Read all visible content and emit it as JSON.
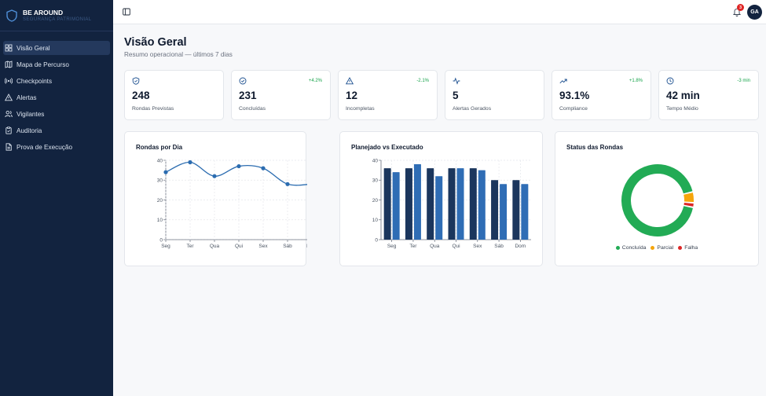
{
  "brand": {
    "name": "BE AROUND",
    "subtitle": "SEGURANÇA PATRIMONIAL"
  },
  "sidebar": {
    "items": [
      {
        "label": "Visão Geral",
        "icon": "dashboard-icon",
        "active": true
      },
      {
        "label": "Mapa de Percurso",
        "icon": "map-icon",
        "active": false
      },
      {
        "label": "Checkpoints",
        "icon": "radio-signal-icon",
        "active": false
      },
      {
        "label": "Alertas",
        "icon": "warning-triangle-icon",
        "active": false
      },
      {
        "label": "Vigilantes",
        "icon": "users-icon",
        "active": false
      },
      {
        "label": "Auditoria",
        "icon": "clipboard-icon",
        "active": false
      },
      {
        "label": "Prova de Execução",
        "icon": "file-icon",
        "active": false
      }
    ]
  },
  "topbar": {
    "notifications": "3",
    "avatar_initials": "GA"
  },
  "page": {
    "title": "Visão Geral",
    "subtitle": "Resumo operacional — últimos 7 dias"
  },
  "stats": [
    {
      "value": "248",
      "label": "Rondas Previstas",
      "delta": "",
      "icon": "shield-icon"
    },
    {
      "value": "231",
      "label": "Concluídas",
      "delta": "+4.2%",
      "icon": "check-circle-icon"
    },
    {
      "value": "12",
      "label": "Incompletas",
      "delta": "-2.1%",
      "icon": "alert-triangle-icon"
    },
    {
      "value": "5",
      "label": "Alertas Gerados",
      "delta": "",
      "icon": "activity-icon"
    },
    {
      "value": "93.1%",
      "label": "Compliance",
      "delta": "+1.8%",
      "icon": "trending-up-icon"
    },
    {
      "value": "42 min",
      "label": "Tempo Médio",
      "delta": "-3 min",
      "icon": "clock-icon"
    }
  ],
  "charts": {
    "line_title": "Rondas por Dia",
    "bar_title": "Planejado vs Executado",
    "donut_title": "Status das Rondas"
  },
  "chart_data": [
    {
      "type": "line",
      "title": "Rondas por Dia",
      "categories": [
        "Seg",
        "Ter",
        "Qua",
        "Qui",
        "Sex",
        "Sáb",
        "Dom"
      ],
      "values": [
        34,
        39,
        32,
        37,
        36,
        28,
        28
      ],
      "ylim": [
        0,
        40
      ],
      "yticks": [
        0,
        10,
        20,
        30,
        40
      ],
      "grid": true,
      "color": "#2b6cb0"
    },
    {
      "type": "bar",
      "title": "Planejado vs Executado",
      "categories": [
        "Seg",
        "Ter",
        "Qua",
        "Qui",
        "Sex",
        "Sáb",
        "Dom"
      ],
      "series": [
        {
          "values": [
            36,
            36,
            36,
            36,
            36,
            30,
            30
          ],
          "color": "#1b365d"
        },
        {
          "values": [
            34,
            38,
            32,
            36,
            35,
            28,
            28
          ],
          "color": "#2f6db5"
        }
      ],
      "ylim": [
        0,
        40
      ],
      "yticks": [
        0,
        10,
        20,
        30,
        40
      ],
      "grid": true
    },
    {
      "type": "pie",
      "title": "Status das Rondas",
      "slices": [
        {
          "name": "Concluída",
          "value": 231,
          "color": "#22ab55"
        },
        {
          "name": "Parcial",
          "value": 12,
          "color": "#f5a50b"
        },
        {
          "name": "Falha",
          "value": 5,
          "color": "#dc2626"
        }
      ],
      "legend": "bottom"
    }
  ]
}
